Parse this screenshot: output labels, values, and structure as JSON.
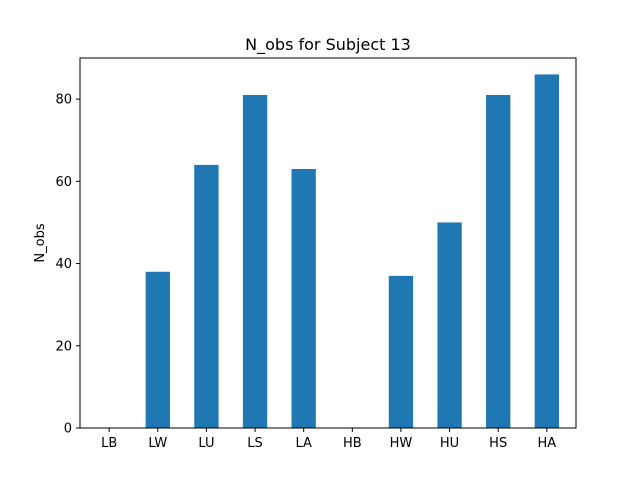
{
  "chart_data": {
    "type": "bar",
    "title": "N_obs for Subject 13",
    "xlabel": "",
    "ylabel": "N_obs",
    "categories": [
      "LB",
      "LW",
      "LU",
      "LS",
      "LA",
      "HB",
      "HW",
      "HU",
      "HS",
      "HA"
    ],
    "values": [
      0,
      38,
      64,
      81,
      63,
      0,
      37,
      50,
      81,
      86
    ],
    "ylim": [
      0,
      90
    ],
    "yticks": [
      0,
      20,
      40,
      60,
      80
    ],
    "grid": false,
    "legend": "none",
    "bar_color": "#1f77b4"
  }
}
